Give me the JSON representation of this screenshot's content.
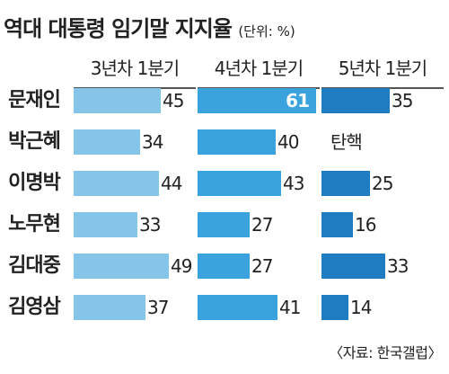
{
  "header": {
    "title": "역대 대통령 임기말 지지율",
    "unit": "(단위: %)"
  },
  "source": "〈자료: 한국갤럽〉",
  "colors": {
    "bar_light": "#86c5ea",
    "bar_mid": "#3aa2dc",
    "bar_dark": "#1f7cc0",
    "rule": "#555555"
  },
  "chart_data": {
    "type": "bar",
    "orientation": "horizontal",
    "title": "역대 대통령 임기말 지지율",
    "unit": "(단위: %)",
    "categories": [
      "문재인",
      "박근혜",
      "이명박",
      "노무현",
      "김대중",
      "김영삼"
    ],
    "series": [
      {
        "name": "3년차 1분기",
        "values": [
          45,
          34,
          44,
          33,
          49,
          37
        ]
      },
      {
        "name": "4년차 1분기",
        "values": [
          61,
          40,
          43,
          27,
          27,
          41
        ]
      },
      {
        "name": "5년차 1분기",
        "values": [
          35,
          null,
          25,
          16,
          33,
          14
        ]
      }
    ],
    "notes": [
      {
        "series": 2,
        "category": 1,
        "text": "탄핵"
      }
    ],
    "highlight": {
      "series": 1,
      "category": 0
    },
    "source": "〈자료: 한국갤럽〉"
  }
}
